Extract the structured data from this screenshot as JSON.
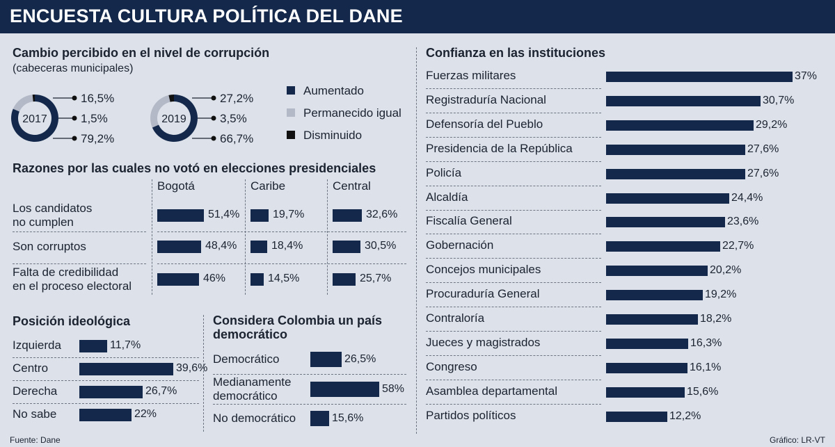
{
  "title": "ENCUESTA CULTURA POLÍTICA DEL DANE",
  "colors": {
    "navy": "#14284b",
    "light": "#b4b9c7",
    "black": "#111111",
    "bg": "#dde2ea"
  },
  "chart_data": [
    {
      "type": "pie",
      "title": "Cambio percibido en el nivel de corrupción",
      "subtitle": "(cabeceras municipales)",
      "legend": [
        "Aumentado",
        "Permanecido igual",
        "Disminuido"
      ],
      "charts": [
        {
          "year": "2017",
          "values": [
            79.2,
            16.5,
            1.5
          ],
          "labels": [
            "16,5%",
            "1,5%",
            "79,2%"
          ]
        },
        {
          "year": "2019",
          "values": [
            66.7,
            27.2,
            3.5
          ],
          "labels": [
            "27,2%",
            "3,5%",
            "66,7%"
          ]
        }
      ]
    },
    {
      "type": "bar",
      "title": "Razones por las cuales no votó en elecciones presidenciales",
      "categories": [
        "Los candidatos no cumplen",
        "Son corruptos",
        "Falta de credibilidad en el proceso electoral"
      ],
      "category_lines": [
        [
          "Los candidatos",
          "no cumplen"
        ],
        [
          "Son corruptos"
        ],
        [
          "Falta de credibilidad",
          "en el proceso electoral"
        ]
      ],
      "series": [
        {
          "name": "Bogotá",
          "values": [
            51.4,
            48.4,
            46
          ],
          "labels": [
            "51,4%",
            "48,4%",
            "46%"
          ]
        },
        {
          "name": "Caribe",
          "values": [
            19.7,
            18.4,
            14.5
          ],
          "labels": [
            "19,7%",
            "18,4%",
            "14,5%"
          ]
        },
        {
          "name": "Central",
          "values": [
            32.6,
            30.5,
            25.7
          ],
          "labels": [
            "32,6%",
            "30,5%",
            "25,7%"
          ]
        }
      ]
    },
    {
      "type": "bar",
      "title": "Posición ideológica",
      "categories": [
        "Izquierda",
        "Centro",
        "Derecha",
        "No sabe"
      ],
      "values": [
        11.7,
        39.6,
        26.7,
        22
      ],
      "labels": [
        "11,7%",
        "39,6%",
        "26,7%",
        "22%"
      ]
    },
    {
      "type": "bar",
      "title_lines": [
        "Considera Colombia un país",
        "democrático"
      ],
      "categories": [
        "Democrático",
        "Medianamente democrático",
        "No democrático"
      ],
      "category_lines": [
        [
          "Democrático"
        ],
        [
          "Medianamente",
          "democrático"
        ],
        [
          "No democrático"
        ]
      ],
      "values": [
        26.5,
        58,
        15.6
      ],
      "labels": [
        "26,5%",
        "58%",
        "15,6%"
      ]
    },
    {
      "type": "bar",
      "title": "Confianza en las instituciones",
      "categories": [
        "Fuerzas militares",
        "Registraduría Nacional",
        "Defensoría del Pueblo",
        "Presidencia de la República",
        "Policía",
        "Alcaldía",
        "Fiscalía General",
        "Gobernación",
        "Concejos municipales",
        "Procuraduría General",
        "Contraloría",
        "Jueces y magistrados",
        "Congreso",
        "Asamblea departamental",
        "Partidos políticos"
      ],
      "values": [
        37,
        30.7,
        29.2,
        27.6,
        27.6,
        24.4,
        23.6,
        22.7,
        20.2,
        19.2,
        18.2,
        16.3,
        16.1,
        15.6,
        12.2
      ],
      "labels": [
        "37%",
        "30,7%",
        "29,2%",
        "27,6%",
        "27,6%",
        "24,4%",
        "23,6%",
        "22,7%",
        "20,2%",
        "19,2%",
        "18,2%",
        "16,3%",
        "16,1%",
        "15,6%",
        "12,2%"
      ]
    }
  ],
  "footer": {
    "source": "Fuente: Dane",
    "credit": "Gráfico: LR-VT"
  }
}
